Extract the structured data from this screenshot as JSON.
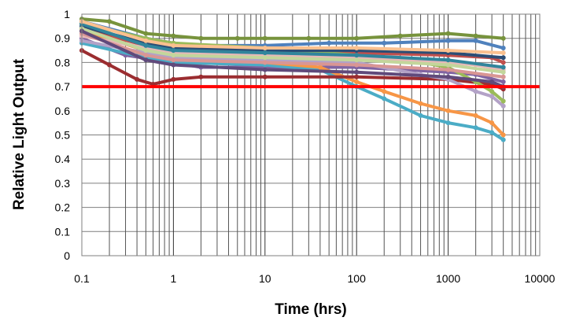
{
  "chart_data": {
    "type": "line",
    "title": "",
    "xlabel": "Time (hrs)",
    "ylabel": "Relative Light Output",
    "x_scale": "log",
    "xlim": [
      0.1,
      10000
    ],
    "ylim": [
      0,
      1
    ],
    "x_ticks": [
      "0.1",
      "1",
      "10",
      "100",
      "1000",
      "10000"
    ],
    "y_ticks": [
      "0",
      "0.1",
      "0.2",
      "0.3",
      "0.4",
      "0.5",
      "0.6",
      "0.7",
      "0.8",
      "0.9",
      "1"
    ],
    "grid": {
      "x": "major+minor",
      "y": "major"
    },
    "legend": "none",
    "threshold": {
      "y": 0.7,
      "color": "#ff0000"
    },
    "series": [
      {
        "color": "#77933c",
        "points": [
          [
            0.1,
            0.98
          ],
          [
            0.2,
            0.97
          ],
          [
            0.5,
            0.92
          ],
          [
            1,
            0.91
          ],
          [
            2,
            0.9
          ],
          [
            5,
            0.9
          ],
          [
            10,
            0.9
          ],
          [
            30,
            0.9
          ],
          [
            100,
            0.9
          ],
          [
            300,
            0.91
          ],
          [
            1000,
            0.92
          ],
          [
            2000,
            0.91
          ],
          [
            4000,
            0.9
          ]
        ]
      },
      {
        "color": "#4f81bd",
        "points": [
          [
            0.1,
            0.97
          ],
          [
            0.5,
            0.9
          ],
          [
            1,
            0.88
          ],
          [
            2,
            0.87
          ],
          [
            10,
            0.87
          ],
          [
            50,
            0.88
          ],
          [
            200,
            0.88
          ],
          [
            1000,
            0.89
          ],
          [
            2000,
            0.89
          ],
          [
            4000,
            0.86
          ]
        ]
      },
      {
        "color": "#c0504d",
        "points": [
          [
            0.1,
            0.94
          ],
          [
            0.5,
            0.87
          ],
          [
            1,
            0.86
          ],
          [
            2,
            0.85
          ],
          [
            10,
            0.84
          ],
          [
            100,
            0.84
          ],
          [
            1000,
            0.83
          ],
          [
            3000,
            0.82
          ],
          [
            4000,
            0.8
          ]
        ]
      },
      {
        "color": "#8064a2",
        "points": [
          [
            0.1,
            0.9
          ],
          [
            0.3,
            0.83
          ],
          [
            1,
            0.8
          ],
          [
            2,
            0.78
          ],
          [
            10,
            0.78
          ],
          [
            100,
            0.78
          ],
          [
            1000,
            0.76
          ],
          [
            2000,
            0.75
          ],
          [
            4000,
            0.72
          ]
        ]
      },
      {
        "color": "#4bacc6",
        "points": [
          [
            0.1,
            0.88
          ],
          [
            0.5,
            0.82
          ],
          [
            1,
            0.8
          ],
          [
            10,
            0.79
          ],
          [
            40,
            0.77
          ],
          [
            100,
            0.7
          ],
          [
            200,
            0.65
          ],
          [
            500,
            0.58
          ],
          [
            1000,
            0.55
          ],
          [
            2000,
            0.53
          ],
          [
            3000,
            0.51
          ],
          [
            4000,
            0.48
          ]
        ]
      },
      {
        "color": "#f79646",
        "points": [
          [
            0.1,
            0.93
          ],
          [
            0.5,
            0.85
          ],
          [
            1,
            0.82
          ],
          [
            10,
            0.8
          ],
          [
            40,
            0.78
          ],
          [
            100,
            0.72
          ],
          [
            200,
            0.68
          ],
          [
            500,
            0.63
          ],
          [
            1000,
            0.6
          ],
          [
            2000,
            0.58
          ],
          [
            3000,
            0.55
          ],
          [
            4000,
            0.5
          ]
        ]
      },
      {
        "color": "#9b2d30",
        "points": [
          [
            0.1,
            0.85
          ],
          [
            0.2,
            0.79
          ],
          [
            0.4,
            0.73
          ],
          [
            0.6,
            0.71
          ],
          [
            1,
            0.73
          ],
          [
            2,
            0.74
          ],
          [
            10,
            0.74
          ],
          [
            100,
            0.74
          ],
          [
            1000,
            0.73
          ],
          [
            3000,
            0.71
          ],
          [
            4000,
            0.69
          ]
        ]
      },
      {
        "color": "#b3a2c7",
        "points": [
          [
            0.1,
            0.89
          ],
          [
            0.5,
            0.84
          ],
          [
            1,
            0.82
          ],
          [
            10,
            0.81
          ],
          [
            100,
            0.8
          ],
          [
            500,
            0.75
          ],
          [
            1000,
            0.73
          ],
          [
            2000,
            0.68
          ],
          [
            3000,
            0.66
          ],
          [
            4000,
            0.62
          ]
        ]
      },
      {
        "color": "#9bbb59",
        "points": [
          [
            0.1,
            0.96
          ],
          [
            0.5,
            0.9
          ],
          [
            1,
            0.88
          ],
          [
            10,
            0.86
          ],
          [
            100,
            0.83
          ],
          [
            500,
            0.8
          ],
          [
            1000,
            0.78
          ],
          [
            2000,
            0.72
          ],
          [
            3000,
            0.68
          ],
          [
            4000,
            0.64
          ]
        ]
      },
      {
        "color": "#e6b9b8",
        "points": [
          [
            0.1,
            0.91
          ],
          [
            0.5,
            0.86
          ],
          [
            1,
            0.84
          ],
          [
            10,
            0.83
          ],
          [
            100,
            0.82
          ],
          [
            1000,
            0.8
          ],
          [
            2000,
            0.79
          ],
          [
            4000,
            0.77
          ]
        ]
      },
      {
        "color": "#2c4d75",
        "points": [
          [
            0.1,
            0.95
          ],
          [
            0.5,
            0.88
          ],
          [
            1,
            0.86
          ],
          [
            10,
            0.85
          ],
          [
            100,
            0.85
          ],
          [
            1000,
            0.84
          ],
          [
            4000,
            0.82
          ]
        ]
      },
      {
        "color": "#d99694",
        "points": [
          [
            0.1,
            0.92
          ],
          [
            0.5,
            0.83
          ],
          [
            1,
            0.81
          ],
          [
            10,
            0.8
          ],
          [
            100,
            0.79
          ],
          [
            1000,
            0.77
          ],
          [
            4000,
            0.74
          ]
        ]
      },
      {
        "color": "#31859c",
        "points": [
          [
            0.1,
            0.96
          ],
          [
            0.5,
            0.87
          ],
          [
            1,
            0.85
          ],
          [
            10,
            0.84
          ],
          [
            100,
            0.83
          ],
          [
            1000,
            0.81
          ],
          [
            4000,
            0.78
          ]
        ]
      },
      {
        "color": "#c3d69b",
        "points": [
          [
            0.1,
            0.94
          ],
          [
            0.5,
            0.85
          ],
          [
            1,
            0.83
          ],
          [
            10,
            0.82
          ],
          [
            100,
            0.81
          ],
          [
            1000,
            0.79
          ],
          [
            4000,
            0.76
          ]
        ]
      },
      {
        "color": "#fac08f",
        "points": [
          [
            0.1,
            0.97
          ],
          [
            0.5,
            0.89
          ],
          [
            1,
            0.87
          ],
          [
            10,
            0.86
          ],
          [
            100,
            0.86
          ],
          [
            1000,
            0.85
          ],
          [
            4000,
            0.84
          ]
        ]
      },
      {
        "color": "#604a7b",
        "points": [
          [
            0.1,
            0.93
          ],
          [
            0.5,
            0.81
          ],
          [
            1,
            0.79
          ],
          [
            10,
            0.77
          ],
          [
            100,
            0.76
          ],
          [
            1000,
            0.74
          ],
          [
            3000,
            0.72
          ],
          [
            4000,
            0.7
          ]
        ]
      }
    ]
  }
}
